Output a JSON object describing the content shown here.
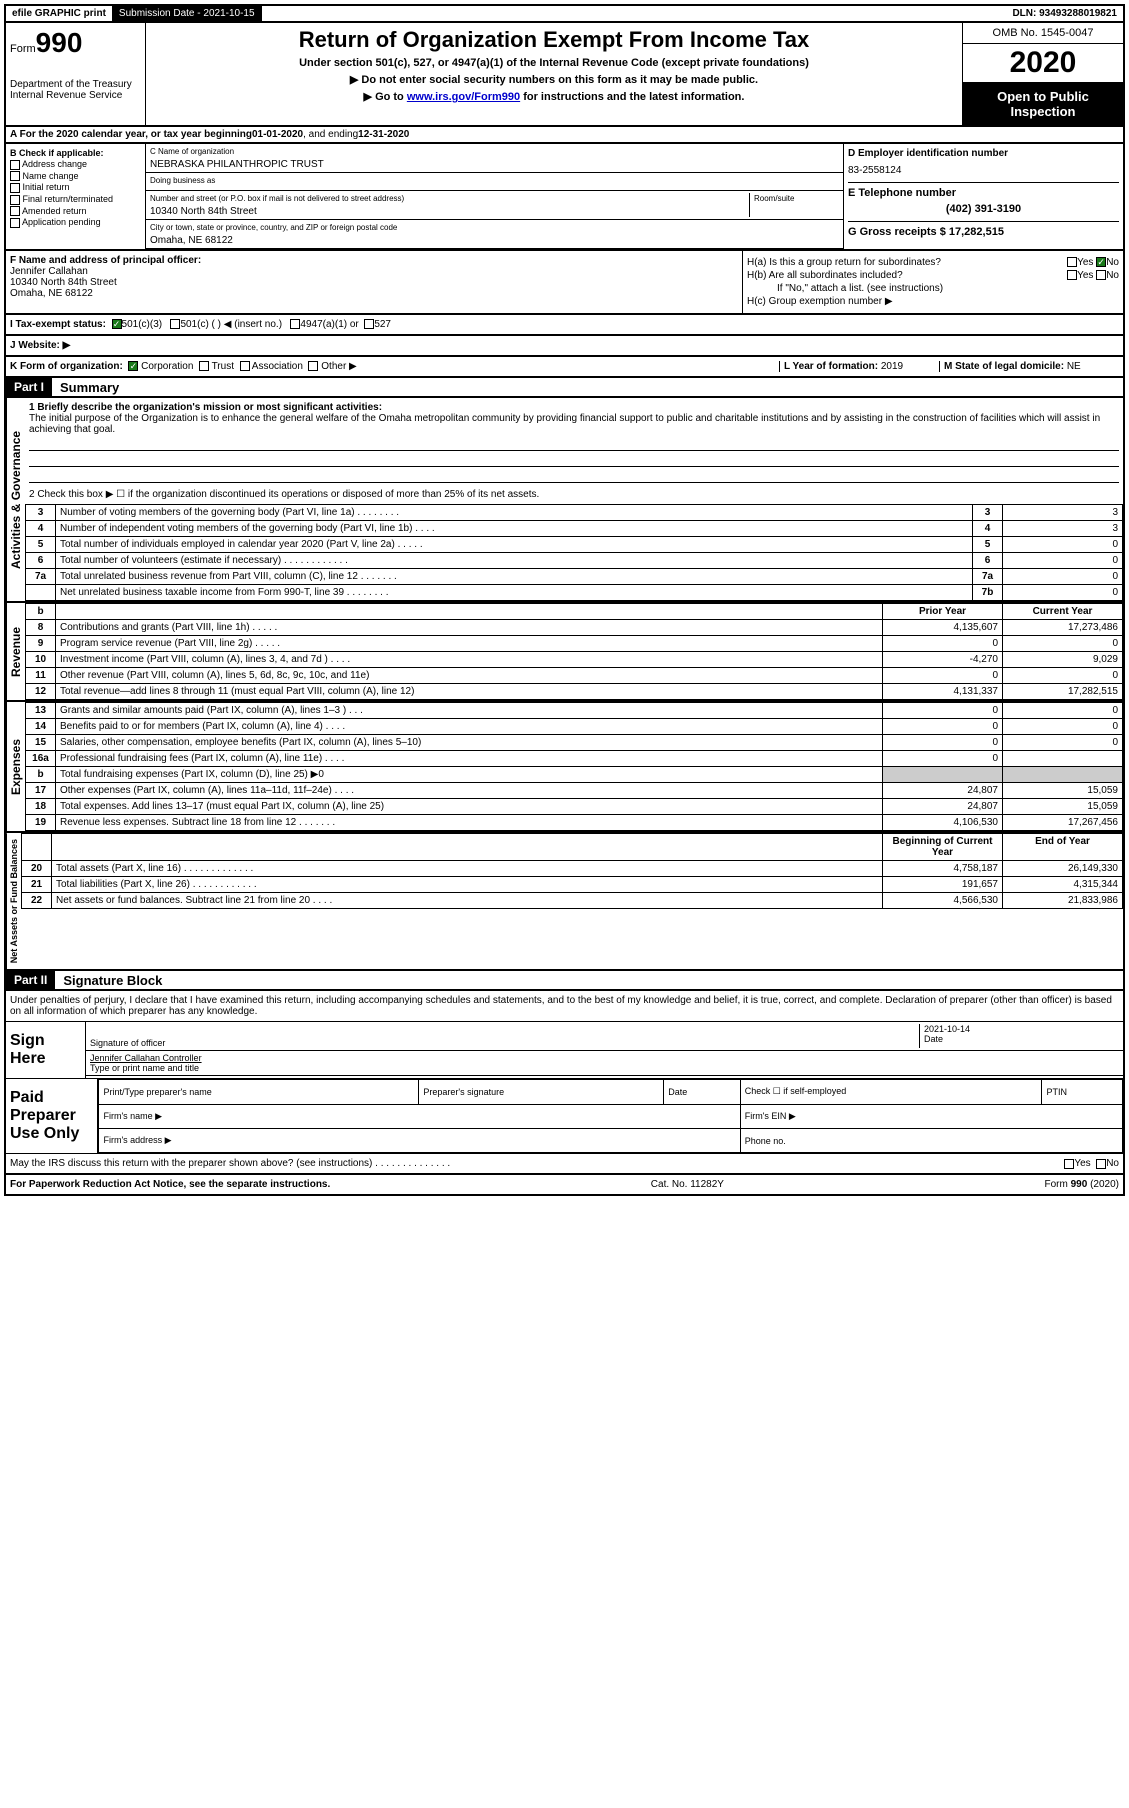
{
  "topbar": {
    "efile": "efile GRAPHIC print",
    "submission_label": "Submission Date - ",
    "submission_date": "2021-10-15",
    "dln_label": "DLN: ",
    "dln": "93493288019821"
  },
  "header": {
    "form_label": "Form",
    "form_num": "990",
    "dept": "Department of the Treasury\nInternal Revenue Service",
    "title": "Return of Organization Exempt From Income Tax",
    "subtitle": "Under section 501(c), 527, or 4947(a)(1) of the Internal Revenue Code (except private foundations)",
    "note1": "Do not enter social security numbers on this form as it may be made public.",
    "note2_pre": "Go to ",
    "note2_link": "www.irs.gov/Form990",
    "note2_post": " for instructions and the latest information.",
    "omb": "OMB No. 1545-0047",
    "year": "2020",
    "inspect": "Open to Public Inspection"
  },
  "sectionA": {
    "text_pre": "A For the 2020 calendar year, or tax year beginning ",
    "begin": "01-01-2020",
    "mid": ", and ending ",
    "end": "12-31-2020"
  },
  "colB": {
    "title": "B Check if applicable:",
    "items": [
      "Address change",
      "Name change",
      "Initial return",
      "Final return/terminated",
      "Amended return",
      "Application pending"
    ]
  },
  "colC": {
    "name_lbl": "C Name of organization",
    "name": "NEBRASKA PHILANTHROPIC TRUST",
    "dba_lbl": "Doing business as",
    "dba": "",
    "addr_lbl": "Number and street (or P.O. box if mail is not delivered to street address)",
    "room_lbl": "Room/suite",
    "addr": "10340 North 84th Street",
    "city_lbl": "City or town, state or province, country, and ZIP or foreign postal code",
    "city": "Omaha, NE  68122"
  },
  "colD": {
    "ein_lbl": "D Employer identification number",
    "ein": "83-2558124",
    "tel_lbl": "E Telephone number",
    "tel": "(402) 391-3190",
    "gross_lbl": "G Gross receipts $ ",
    "gross": "17,282,515"
  },
  "officer": {
    "lbl": "F  Name and address of principal officer:",
    "name": "Jennifer Callahan",
    "addr1": "10340 North 84th Street",
    "addr2": "Omaha, NE  68122"
  },
  "H": {
    "a": "H(a)  Is this a group return for subordinates?",
    "b": "H(b)  Are all subordinates included?",
    "b_note": "If \"No,\" attach a list. (see instructions)",
    "c": "H(c)  Group exemption number ▶",
    "yes": "Yes",
    "no": "No"
  },
  "I": {
    "lbl": "I  Tax-exempt status:",
    "opts": [
      "501(c)(3)",
      "501(c) (  ) ◀ (insert no.)",
      "4947(a)(1) or",
      "527"
    ]
  },
  "J": {
    "lbl": "J  Website: ▶",
    "val": ""
  },
  "K": {
    "lbl": "K Form of organization:",
    "opts": [
      "Corporation",
      "Trust",
      "Association",
      "Other ▶"
    ]
  },
  "L": {
    "lbl": "L Year of formation: ",
    "val": "2019"
  },
  "M": {
    "lbl": "M State of legal domicile: ",
    "val": "NE"
  },
  "part1": {
    "bar": "Part I",
    "title": "Summary"
  },
  "summary": {
    "q1": "1  Briefly describe the organization's mission or most significant activities:",
    "mission": "The initial purpose of the Organization is to enhance the general welfare of the Omaha metropolitan community by providing financial support to public and charitable institutions and by assisting in the construction of facilities which will assist in achieving that goal.",
    "q2": "2  Check this box ▶ ☐  if the organization discontinued its operations or disposed of more than 25% of its net assets.",
    "rows_gov": [
      {
        "n": "3",
        "d": "Number of voting members of the governing body (Part VI, line 1a)  .    .    .    .    .    .    .    .",
        "b": "3",
        "v": "3"
      },
      {
        "n": "4",
        "d": "Number of independent voting members of the governing body (Part VI, line 1b)   .    .    .    .",
        "b": "4",
        "v": "3"
      },
      {
        "n": "5",
        "d": "Total number of individuals employed in calendar year 2020 (Part V, line 2a)   .    .    .    .    .",
        "b": "5",
        "v": "0"
      },
      {
        "n": "6",
        "d": "Total number of volunteers (estimate if necessary)    .    .    .    .    .    .    .    .    .    .    .    .",
        "b": "6",
        "v": "0"
      },
      {
        "n": "7a",
        "d": "Total unrelated business revenue from Part VIII, column (C), line 12    .    .    .    .    .    .    .",
        "b": "7a",
        "v": "0"
      },
      {
        "n": "",
        "d": "Net unrelated business taxable income from Form 990-T, line 39   .    .    .    .    .    .    .    .",
        "b": "7b",
        "v": "0"
      }
    ],
    "hdr_b": "b",
    "hdr_prior": "Prior Year",
    "hdr_curr": "Current Year",
    "rows_rev": [
      {
        "n": "8",
        "d": "Contributions and grants (Part VIII, line 1h)    .    .    .    .    .",
        "p": "4,135,607",
        "c": "17,273,486"
      },
      {
        "n": "9",
        "d": "Program service revenue (Part VIII, line 2g)    .    .    .    .    .",
        "p": "0",
        "c": "0"
      },
      {
        "n": "10",
        "d": "Investment income (Part VIII, column (A), lines 3, 4, and 7d )    .    .    .    .",
        "p": "-4,270",
        "c": "9,029"
      },
      {
        "n": "11",
        "d": "Other revenue (Part VIII, column (A), lines 5, 6d, 8c, 9c, 10c, and 11e)",
        "p": "0",
        "c": "0"
      },
      {
        "n": "12",
        "d": "Total revenue—add lines 8 through 11 (must equal Part VIII, column (A), line 12)",
        "p": "4,131,337",
        "c": "17,282,515"
      }
    ],
    "rows_exp": [
      {
        "n": "13",
        "d": "Grants and similar amounts paid (Part IX, column (A), lines 1–3 )   .    .    .",
        "p": "0",
        "c": "0"
      },
      {
        "n": "14",
        "d": "Benefits paid to or for members (Part IX, column (A), line 4)   .    .    .    .",
        "p": "0",
        "c": "0"
      },
      {
        "n": "15",
        "d": "Salaries, other compensation, employee benefits (Part IX, column (A), lines 5–10)",
        "p": "0",
        "c": "0"
      },
      {
        "n": "16a",
        "d": "Professional fundraising fees (Part IX, column (A), line 11e)    .    .    .    .",
        "p": "0",
        "c": ""
      },
      {
        "n": "b",
        "d": "Total fundraising expenses (Part IX, column (D), line 25) ▶0",
        "p": "",
        "c": "",
        "shade": true
      },
      {
        "n": "17",
        "d": "Other expenses (Part IX, column (A), lines 11a–11d, 11f–24e)   .    .    .    .",
        "p": "24,807",
        "c": "15,059"
      },
      {
        "n": "18",
        "d": "Total expenses. Add lines 13–17 (must equal Part IX, column (A), line 25)",
        "p": "24,807",
        "c": "15,059"
      },
      {
        "n": "19",
        "d": "Revenue less expenses. Subtract line 18 from line 12  .    .    .    .    .    .    .",
        "p": "4,106,530",
        "c": "17,267,456"
      }
    ],
    "hdr_boy": "Beginning of Current Year",
    "hdr_eoy": "End of Year",
    "rows_net": [
      {
        "n": "20",
        "d": "Total assets (Part X, line 16)   .    .    .    .    .    .    .    .    .    .    .    .    .",
        "p": "4,758,187",
        "c": "26,149,330"
      },
      {
        "n": "21",
        "d": "Total liabilities (Part X, line 26)  .    .    .    .    .    .    .    .    .    .    .    .",
        "p": "191,657",
        "c": "4,315,344"
      },
      {
        "n": "22",
        "d": "Net assets or fund balances. Subtract line 21 from line 20    .    .    .    .",
        "p": "4,566,530",
        "c": "21,833,986"
      }
    ],
    "tab_gov": "Activities & Governance",
    "tab_rev": "Revenue",
    "tab_exp": "Expenses",
    "tab_net": "Net Assets or Fund Balances"
  },
  "part2": {
    "bar": "Part II",
    "title": "Signature Block"
  },
  "sig": {
    "decl": "Under penalties of perjury, I declare that I have examined this return, including accompanying schedules and statements, and to the best of my knowledge and belief, it is true, correct, and complete. Declaration of preparer (other than officer) is based on all information of which preparer has any knowledge.",
    "sign_here": "Sign Here",
    "sig_officer": "Signature of officer",
    "date_lbl": "Date",
    "date_val": "2021-10-14",
    "name_title": "Jennifer Callahan  Controller",
    "type_lbl": "Type or print name and title",
    "paid": "Paid Preparer Use Only",
    "p_name": "Print/Type preparer's name",
    "p_sig": "Preparer's signature",
    "p_date": "Date",
    "p_check": "Check ☐ if self-employed",
    "p_ptin": "PTIN",
    "firm_name": "Firm's name    ▶",
    "firm_ein": "Firm's EIN ▶",
    "firm_addr": "Firm's address ▶",
    "phone": "Phone no.",
    "discuss": "May the IRS discuss this return with the preparer shown above? (see instructions)   .    .    .    .    .    .    .    .    .    .    .    .    .    .",
    "yes": "Yes",
    "no": "No"
  },
  "footer": {
    "l": "For Paperwork Reduction Act Notice, see the separate instructions.",
    "c": "Cat. No. 11282Y",
    "r": "Form 990 (2020)"
  }
}
